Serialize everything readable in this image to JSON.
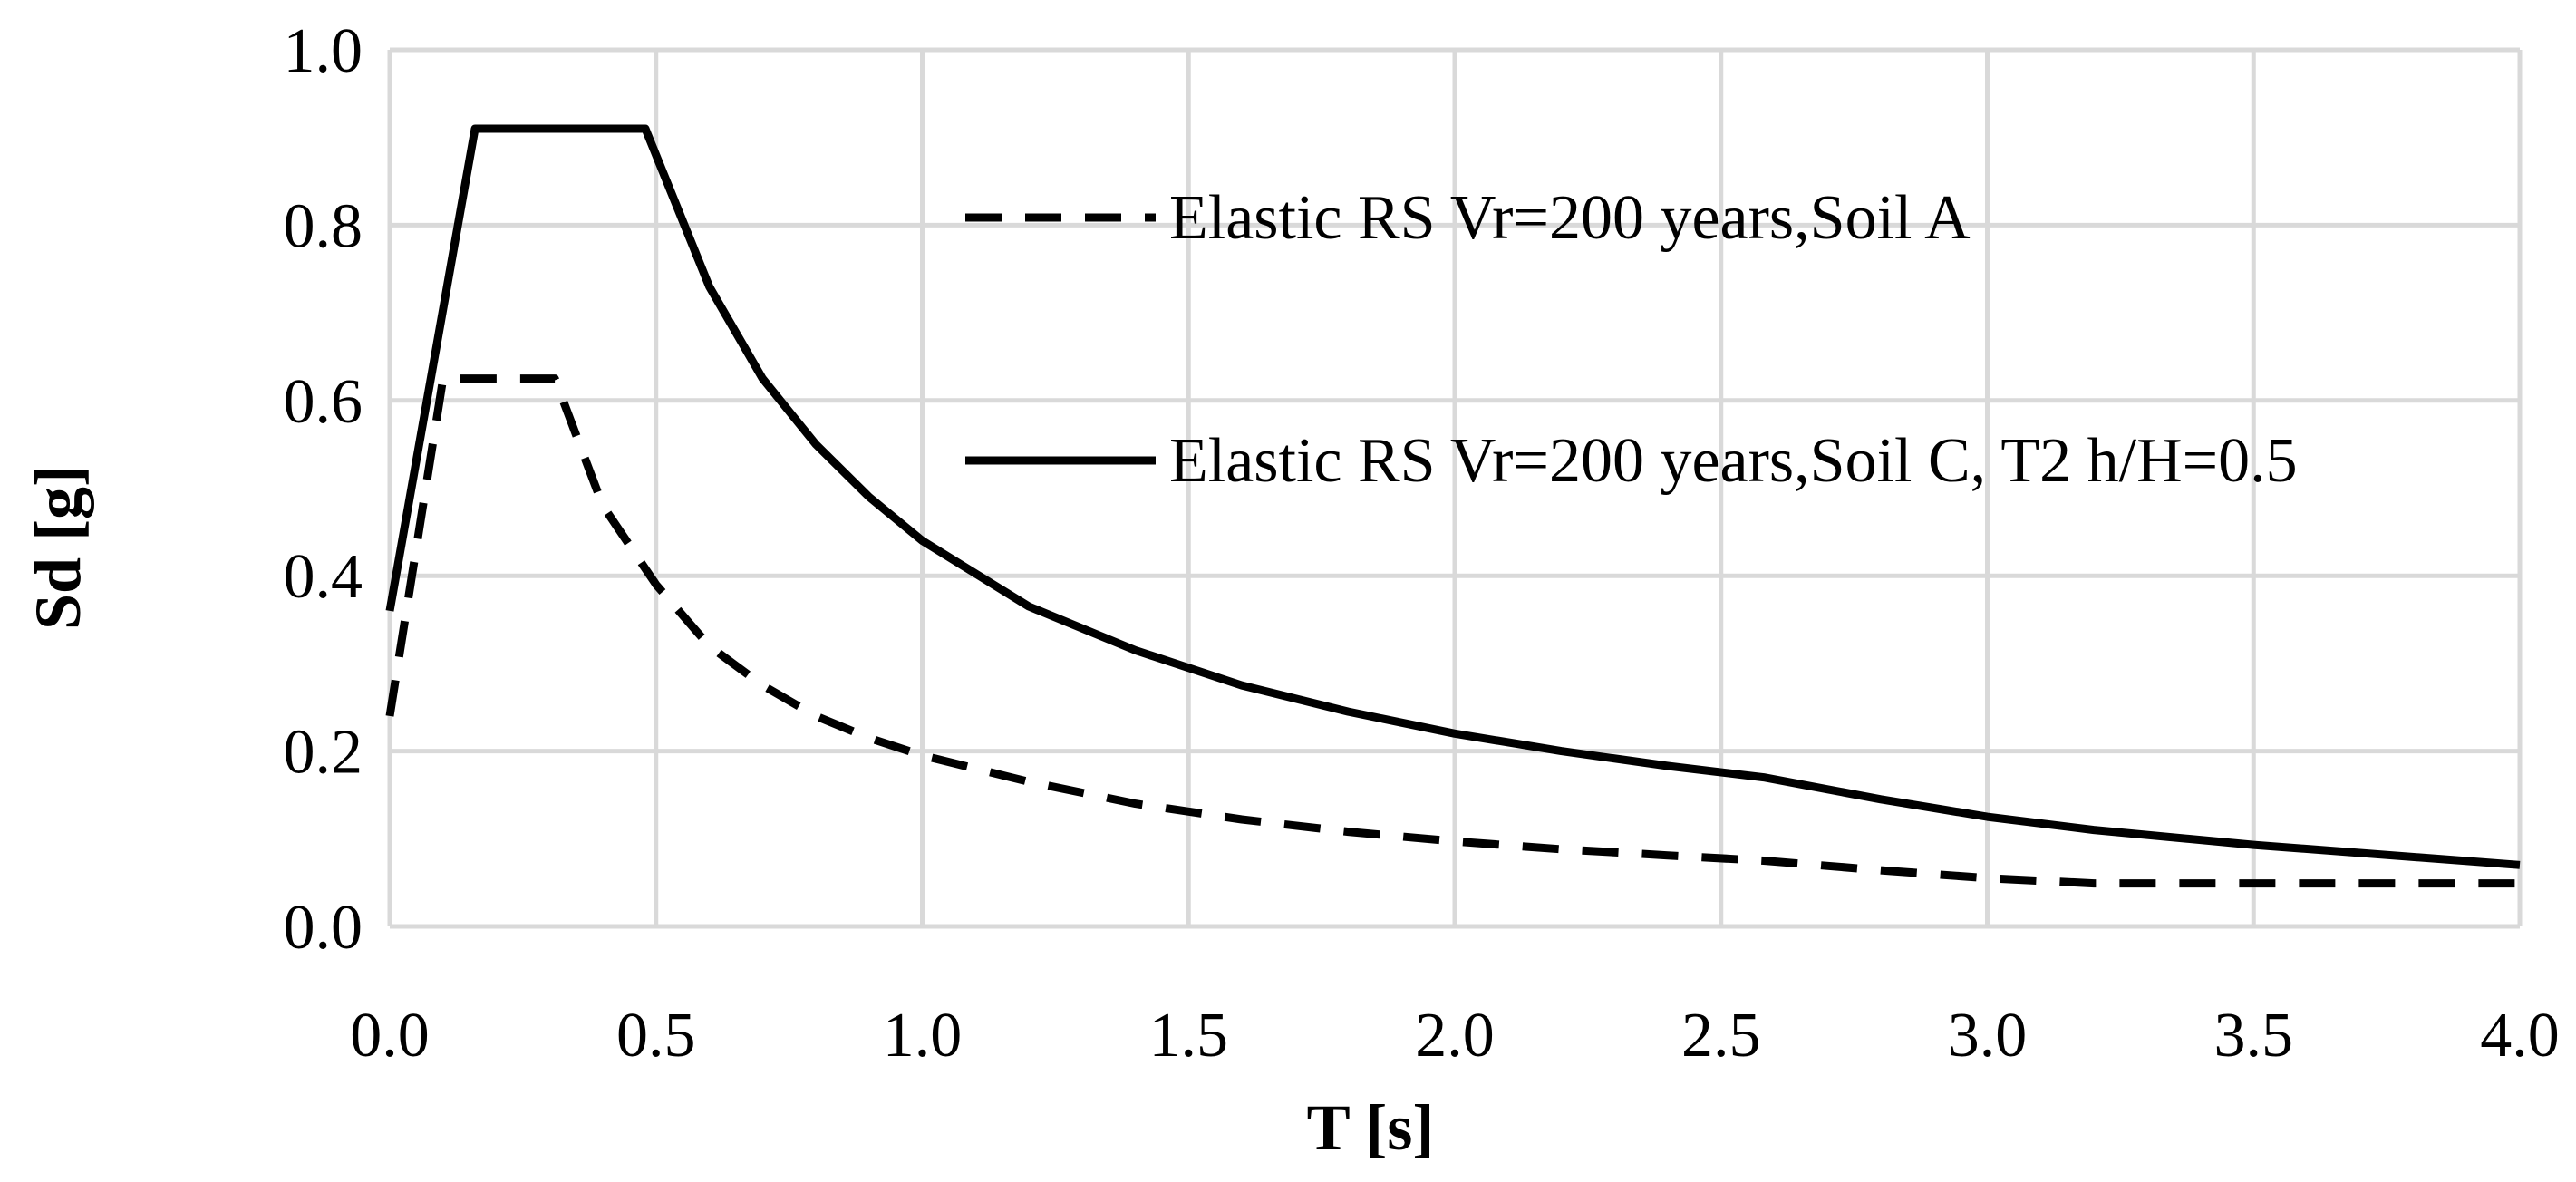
{
  "chart_data": {
    "type": "line",
    "title": "",
    "xlabel": "T [s]",
    "ylabel": "Sd [g]",
    "xlim": [
      0,
      4
    ],
    "ylim": [
      0,
      1
    ],
    "grid": true,
    "legend_position": "top-right",
    "x_ticks": [
      0,
      0.5,
      1,
      1.5,
      2,
      2.5,
      3,
      3.5,
      4
    ],
    "x_tick_labels": [
      "0.0",
      "0.5",
      "1.0",
      "1.5",
      "2.0",
      "2.5",
      "3.0",
      "3.5",
      "4.0"
    ],
    "y_ticks": [
      0,
      0.2,
      0.4,
      0.6,
      0.8,
      1
    ],
    "y_tick_labels": [
      "0.0",
      "0.2",
      "0.4",
      "0.6",
      "0.8",
      "1.0"
    ],
    "series": [
      {
        "name": "Elastic RS Vr=200 years,Soil A",
        "style": "dashed",
        "color": "#000000",
        "x": [
          0.0,
          0.1,
          0.31,
          0.4,
          0.5,
          0.6,
          0.7,
          0.8,
          0.9,
          1.0,
          1.2,
          1.4,
          1.6,
          1.8,
          2.0,
          2.2,
          2.4,
          2.58,
          2.8,
          3.0,
          3.2,
          3.5,
          4.0
        ],
        "values": [
          0.24,
          0.625,
          0.625,
          0.48,
          0.39,
          0.32,
          0.275,
          0.24,
          0.215,
          0.195,
          0.165,
          0.14,
          0.122,
          0.108,
          0.097,
          0.088,
          0.081,
          0.075,
          0.064,
          0.055,
          0.049,
          0.049,
          0.049
        ]
      },
      {
        "name": "Elastic RS Vr=200 years,Soil C, T2 h/H=0.5",
        "style": "solid",
        "color": "#000000",
        "x": [
          0.0,
          0.16,
          0.48,
          0.6,
          0.7,
          0.8,
          0.9,
          1.0,
          1.2,
          1.4,
          1.6,
          1.8,
          2.0,
          2.2,
          2.4,
          2.58,
          2.8,
          3.0,
          3.2,
          3.5,
          4.0
        ],
        "values": [
          0.36,
          0.91,
          0.91,
          0.73,
          0.625,
          0.55,
          0.49,
          0.44,
          0.365,
          0.315,
          0.275,
          0.245,
          0.22,
          0.2,
          0.183,
          0.17,
          0.145,
          0.125,
          0.11,
          0.093,
          0.07
        ]
      }
    ]
  }
}
